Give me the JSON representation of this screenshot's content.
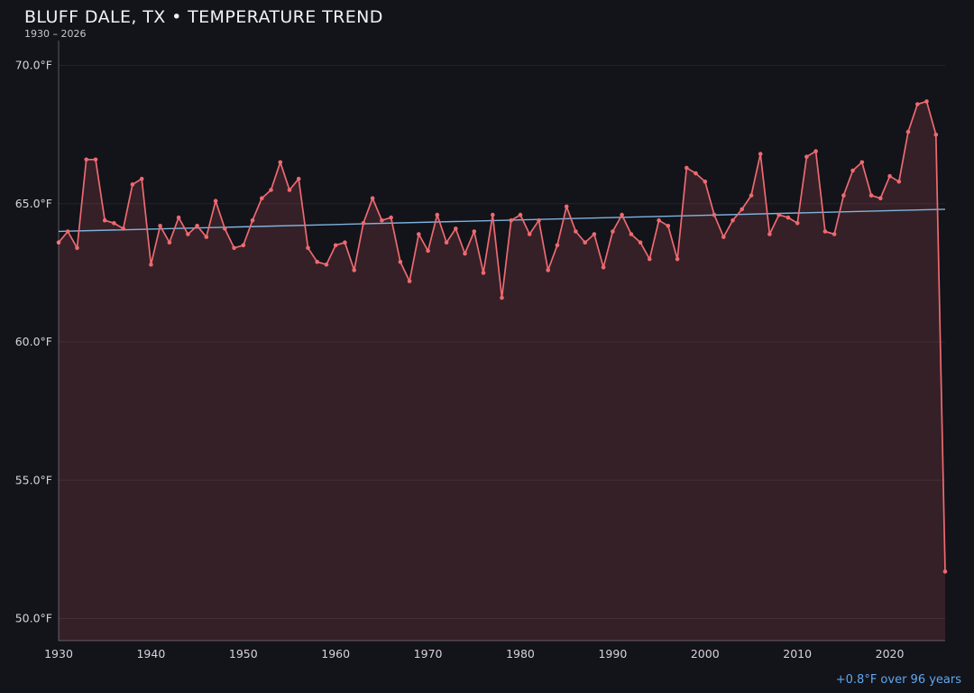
{
  "title": "BLUFF DALE, TX • TEMPERATURE TREND",
  "subtitle": "1930 – 2026",
  "annotation": "+0.8°F over 96 years",
  "colors": {
    "background": "#13131a",
    "series": "#ed6a70",
    "area_fill": "rgba(237,106,112,0.16)",
    "trend_line": "#85bce8",
    "annotation": "#5ea8f0",
    "grid": "rgba(255,255,255,0.07)",
    "axis": "rgba(255,255,255,0.30)",
    "tick_label": "#d4d4da",
    "title": "#f2f2f4",
    "subtitle": "#c6c6cd"
  },
  "chart_data": {
    "type": "line",
    "title": "BLUFF DALE, TX • TEMPERATURE TREND",
    "subtitle": "1930 – 2026",
    "x_start_year": 1930,
    "x_end_year": 2026,
    "ylim": [
      49.2,
      70.9
    ],
    "grid": "horizontal-only",
    "legend": "none",
    "yticks": {
      "values": [
        50,
        55,
        60,
        65,
        70
      ],
      "labels": [
        "50.0°F",
        "55.0°F",
        "60.0°F",
        "65.0°F",
        "70.0°F"
      ]
    },
    "xticks": [
      1930,
      1940,
      1950,
      1960,
      1970,
      1980,
      1990,
      2000,
      2010,
      2020
    ],
    "series": [
      {
        "name": "annual-mean-temperature",
        "unit": "°F",
        "values": [
          63.6,
          64.0,
          63.4,
          66.6,
          66.6,
          64.4,
          64.3,
          64.1,
          65.7,
          65.9,
          62.8,
          64.2,
          63.6,
          64.5,
          63.9,
          64.2,
          63.8,
          65.1,
          64.1,
          63.4,
          63.5,
          64.4,
          65.2,
          65.5,
          66.5,
          65.5,
          65.9,
          63.4,
          62.9,
          62.8,
          63.5,
          63.6,
          62.6,
          64.3,
          65.2,
          64.4,
          64.5,
          62.9,
          62.2,
          63.9,
          63.3,
          64.6,
          63.6,
          64.1,
          63.2,
          64.0,
          62.5,
          64.6,
          61.6,
          64.4,
          64.6,
          63.9,
          64.4,
          62.6,
          63.5,
          64.9,
          64.0,
          63.6,
          63.9,
          62.7,
          64.0,
          64.6,
          63.9,
          63.6,
          63.0,
          64.4,
          64.2,
          63.0,
          66.3,
          66.1,
          65.8,
          64.6,
          63.8,
          64.4,
          64.8,
          65.3,
          66.8,
          63.9,
          64.6,
          64.5,
          64.3,
          66.7,
          66.9,
          64.0,
          63.9,
          65.3,
          66.2,
          66.5,
          65.3,
          65.2,
          66.0,
          65.8,
          67.6,
          68.6,
          68.7,
          67.5,
          51.7
        ]
      }
    ],
    "trend": {
      "start_year": 1930,
      "start_value": 64.0,
      "end_year": 2026,
      "end_value": 64.8,
      "label": "+0.8°F over 96 years"
    }
  }
}
